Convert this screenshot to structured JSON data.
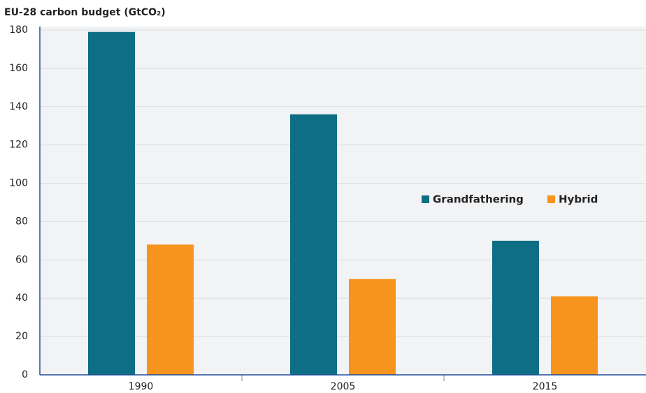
{
  "chart_data": {
    "type": "bar",
    "title": "EU-28 carbon budget (GtCO₂)",
    "categories": [
      "1990",
      "2005",
      "2015"
    ],
    "series": [
      {
        "name": "Grandfathering",
        "color": "#0e6e85",
        "values": [
          179,
          136,
          70
        ]
      },
      {
        "name": "Hybrid",
        "color": "#f7941d",
        "values": [
          68,
          50,
          41
        ]
      }
    ],
    "ylim": [
      0,
      180
    ],
    "yticks": [
      0,
      20,
      40,
      60,
      80,
      100,
      120,
      140,
      160,
      180
    ],
    "grid": true
  }
}
